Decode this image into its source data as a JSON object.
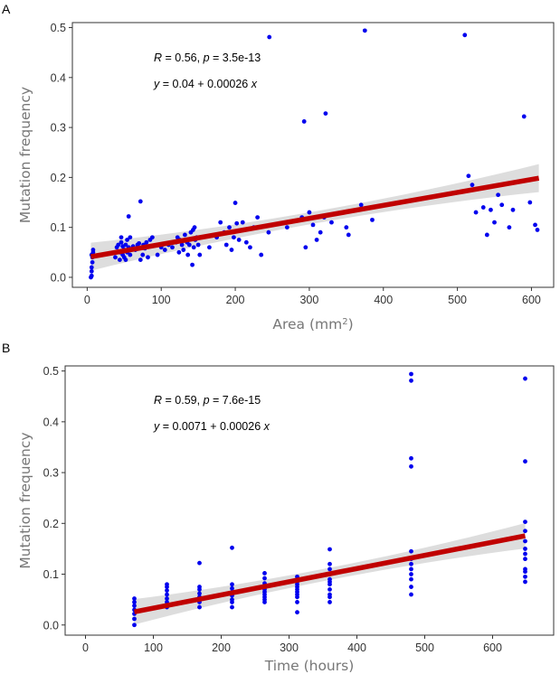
{
  "chart_data": [
    {
      "panel": "A",
      "type": "scatter",
      "xlabel": "Area (mm",
      "xlabel_sup": "2",
      "xlabel_end": ")",
      "ylabel": "Mutation frequency",
      "xlim": [
        -20,
        630
      ],
      "ylim": [
        -0.02,
        0.51
      ],
      "xticks": [
        0,
        100,
        200,
        300,
        400,
        500,
        600
      ],
      "yticks": [
        0.0,
        0.1,
        0.2,
        0.3,
        0.4,
        0.5
      ],
      "ytick_labels": [
        "0.0",
        "0.1",
        "0.2",
        "0.3",
        "0.4",
        "0.5"
      ],
      "point_color": "#0000ee",
      "fit_color": "#c00000",
      "band_color": "#d9d9d9",
      "fit": {
        "intercept": 0.04,
        "slope": 0.00026,
        "x_range": [
          5,
          610
        ],
        "band": [
          0.012,
          0.028
        ]
      },
      "annotation": {
        "r_label": "R",
        "r_value": " = 0.56, ",
        "p_label": "p",
        "p_value": " = 3.5e-13",
        "eq_y": "y",
        "eq_mid": " = 0.04 + 0.00026 ",
        "eq_x": "x"
      },
      "points": [
        [
          5,
          0.0
        ],
        [
          6,
          0.003
        ],
        [
          6,
          0.012
        ],
        [
          6,
          0.02
        ],
        [
          7,
          0.03
        ],
        [
          7,
          0.04
        ],
        [
          8,
          0.05
        ],
        [
          8,
          0.055
        ],
        [
          6,
          0.045
        ],
        [
          38,
          0.04
        ],
        [
          40,
          0.06
        ],
        [
          42,
          0.065
        ],
        [
          44,
          0.035
        ],
        [
          44,
          0.05
        ],
        [
          46,
          0.07
        ],
        [
          46,
          0.08
        ],
        [
          48,
          0.062
        ],
        [
          48,
          0.045
        ],
        [
          50,
          0.055
        ],
        [
          50,
          0.04
        ],
        [
          52,
          0.065
        ],
        [
          52,
          0.035
        ],
        [
          54,
          0.075
        ],
        [
          54,
          0.05
        ],
        [
          56,
          0.06
        ],
        [
          56,
          0.122
        ],
        [
          58,
          0.045
        ],
        [
          58,
          0.08
        ],
        [
          62,
          0.062
        ],
        [
          65,
          0.055
        ],
        [
          68,
          0.065
        ],
        [
          70,
          0.068
        ],
        [
          72,
          0.035
        ],
        [
          72,
          0.152
        ],
        [
          75,
          0.045
        ],
        [
          76,
          0.065
        ],
        [
          78,
          0.058
        ],
        [
          80,
          0.07
        ],
        [
          82,
          0.04
        ],
        [
          85,
          0.075
        ],
        [
          88,
          0.08
        ],
        [
          95,
          0.045
        ],
        [
          100,
          0.06
        ],
        [
          105,
          0.055
        ],
        [
          110,
          0.065
        ],
        [
          115,
          0.06
        ],
        [
          120,
          0.07
        ],
        [
          122,
          0.08
        ],
        [
          124,
          0.05
        ],
        [
          125,
          0.075
        ],
        [
          128,
          0.065
        ],
        [
          130,
          0.055
        ],
        [
          132,
          0.085
        ],
        [
          135,
          0.07
        ],
        [
          136,
          0.045
        ],
        [
          138,
          0.065
        ],
        [
          140,
          0.09
        ],
        [
          142,
          0.025
        ],
        [
          143,
          0.095
        ],
        [
          144,
          0.06
        ],
        [
          145,
          0.1
        ],
        [
          146,
          0.075
        ],
        [
          148,
          0.08
        ],
        [
          150,
          0.065
        ],
        [
          152,
          0.045
        ],
        [
          165,
          0.06
        ],
        [
          175,
          0.08
        ],
        [
          180,
          0.11
        ],
        [
          185,
          0.09
        ],
        [
          188,
          0.065
        ],
        [
          192,
          0.1
        ],
        [
          195,
          0.055
        ],
        [
          198,
          0.08
        ],
        [
          200,
          0.149
        ],
        [
          202,
          0.108
        ],
        [
          205,
          0.075
        ],
        [
          210,
          0.11
        ],
        [
          215,
          0.07
        ],
        [
          220,
          0.06
        ],
        [
          225,
          0.1
        ],
        [
          230,
          0.12
        ],
        [
          235,
          0.045
        ],
        [
          245,
          0.09
        ],
        [
          246,
          0.481
        ],
        [
          270,
          0.1
        ],
        [
          290,
          0.12
        ],
        [
          293,
          0.312
        ],
        [
          295,
          0.06
        ],
        [
          300,
          0.13
        ],
        [
          305,
          0.105
        ],
        [
          310,
          0.075
        ],
        [
          315,
          0.09
        ],
        [
          320,
          0.12
        ],
        [
          322,
          0.328
        ],
        [
          330,
          0.11
        ],
        [
          350,
          0.1
        ],
        [
          353,
          0.085
        ],
        [
          370,
          0.145
        ],
        [
          375,
          0.494
        ],
        [
          385,
          0.115
        ],
        [
          510,
          0.485
        ],
        [
          515,
          0.203
        ],
        [
          520,
          0.185
        ],
        [
          525,
          0.13
        ],
        [
          535,
          0.14
        ],
        [
          540,
          0.085
        ],
        [
          545,
          0.135
        ],
        [
          550,
          0.11
        ],
        [
          555,
          0.165
        ],
        [
          560,
          0.145
        ],
        [
          570,
          0.1
        ],
        [
          575,
          0.135
        ],
        [
          590,
          0.322
        ],
        [
          598,
          0.15
        ],
        [
          605,
          0.105
        ],
        [
          608,
          0.095
        ]
      ]
    },
    {
      "panel": "B",
      "type": "scatter",
      "xlabel": "Time (hours)",
      "ylabel": "Mutation frequency",
      "xlim": [
        -30,
        690
      ],
      "ylim": [
        -0.02,
        0.51
      ],
      "xticks": [
        0,
        100,
        200,
        300,
        400,
        500,
        600
      ],
      "yticks": [
        0.0,
        0.1,
        0.2,
        0.3,
        0.4,
        0.5
      ],
      "ytick_labels": [
        "0.0",
        "0.1",
        "0.2",
        "0.3",
        "0.4",
        "0.5"
      ],
      "point_color": "#0000ee",
      "fit_color": "#c00000",
      "band_color": "#d9d9d9",
      "fit": {
        "intercept": 0.0071,
        "slope": 0.00026,
        "x_range": [
          72,
          648
        ],
        "band": [
          0.012,
          0.025
        ]
      },
      "annotation": {
        "r_label": "R",
        "r_value": " = 0.59, ",
        "p_label": "p",
        "p_value": " = 7.6e-15",
        "eq_y": "y",
        "eq_mid": " = 0.0071 + 0.00026 ",
        "eq_x": "x"
      },
      "points": [
        [
          72,
          0.0
        ],
        [
          72,
          0.012
        ],
        [
          72,
          0.022
        ],
        [
          72,
          0.03
        ],
        [
          72,
          0.038
        ],
        [
          72,
          0.045
        ],
        [
          72,
          0.052
        ],
        [
          120,
          0.035
        ],
        [
          120,
          0.045
        ],
        [
          120,
          0.052
        ],
        [
          120,
          0.06
        ],
        [
          120,
          0.068
        ],
        [
          120,
          0.075
        ],
        [
          120,
          0.08
        ],
        [
          168,
          0.035
        ],
        [
          168,
          0.045
        ],
        [
          168,
          0.055
        ],
        [
          168,
          0.062
        ],
        [
          168,
          0.07
        ],
        [
          168,
          0.075
        ],
        [
          168,
          0.122
        ],
        [
          216,
          0.035
        ],
        [
          216,
          0.045
        ],
        [
          216,
          0.05
        ],
        [
          216,
          0.058
        ],
        [
          216,
          0.065
        ],
        [
          216,
          0.072
        ],
        [
          216,
          0.08
        ],
        [
          216,
          0.152
        ],
        [
          264,
          0.045
        ],
        [
          264,
          0.05
        ],
        [
          264,
          0.055
        ],
        [
          264,
          0.06
        ],
        [
          264,
          0.065
        ],
        [
          264,
          0.07
        ],
        [
          264,
          0.075
        ],
        [
          264,
          0.082
        ],
        [
          264,
          0.092
        ],
        [
          264,
          0.102
        ],
        [
          312,
          0.025
        ],
        [
          312,
          0.045
        ],
        [
          312,
          0.055
        ],
        [
          312,
          0.06
        ],
        [
          312,
          0.065
        ],
        [
          312,
          0.07
        ],
        [
          312,
          0.075
        ],
        [
          312,
          0.08
        ],
        [
          312,
          0.085
        ],
        [
          312,
          0.09
        ],
        [
          312,
          0.095
        ],
        [
          360,
          0.045
        ],
        [
          360,
          0.055
        ],
        [
          360,
          0.06
        ],
        [
          360,
          0.07
        ],
        [
          360,
          0.08
        ],
        [
          360,
          0.085
        ],
        [
          360,
          0.09
        ],
        [
          360,
          0.1
        ],
        [
          360,
          0.11
        ],
        [
          360,
          0.12
        ],
        [
          360,
          0.149
        ],
        [
          480,
          0.06
        ],
        [
          480,
          0.075
        ],
        [
          480,
          0.09
        ],
        [
          480,
          0.1
        ],
        [
          480,
          0.11
        ],
        [
          480,
          0.12
        ],
        [
          480,
          0.13
        ],
        [
          480,
          0.145
        ],
        [
          480,
          0.312
        ],
        [
          480,
          0.328
        ],
        [
          480,
          0.481
        ],
        [
          480,
          0.494
        ],
        [
          648,
          0.085
        ],
        [
          648,
          0.095
        ],
        [
          648,
          0.105
        ],
        [
          648,
          0.11
        ],
        [
          648,
          0.13
        ],
        [
          648,
          0.14
        ],
        [
          648,
          0.15
        ],
        [
          648,
          0.165
        ],
        [
          648,
          0.185
        ],
        [
          648,
          0.203
        ],
        [
          648,
          0.322
        ],
        [
          648,
          0.485
        ]
      ]
    }
  ]
}
